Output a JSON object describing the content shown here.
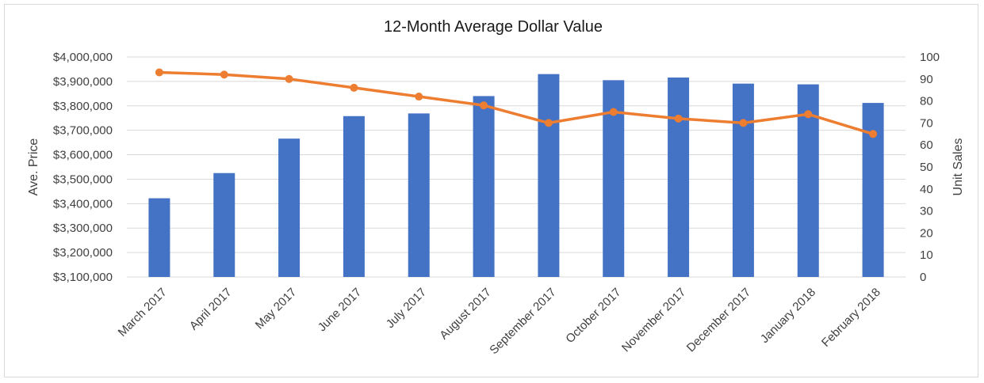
{
  "chart_data": {
    "type": "bar",
    "title": "12-Month Average Dollar Value",
    "xlabel": "",
    "ylabel": "Ave. Price",
    "y2label": "Unit Sales",
    "categories": [
      "March 2017",
      "April 2017",
      "May 2017",
      "June 2017",
      "July 2017",
      "August 2017",
      "September 2017",
      "October 2017",
      "November 2017",
      "December 2017",
      "January 2018",
      "February 2018"
    ],
    "ylim": [
      3100000,
      4000000
    ],
    "y2lim": [
      0,
      100
    ],
    "yticks": [
      "$3,100,000",
      "$3,200,000",
      "$3,300,000",
      "$3,400,000",
      "$3,500,000",
      "$3,600,000",
      "$3,700,000",
      "$3,800,000",
      "$3,900,000",
      "$4,000,000"
    ],
    "y2ticks": [
      "0",
      "10",
      "20",
      "30",
      "40",
      "50",
      "60",
      "70",
      "80",
      "90",
      "100"
    ],
    "grid": true,
    "series": [
      {
        "type": "bar",
        "axis": "left",
        "color": "#4472c4",
        "values": [
          3422000,
          3525000,
          3666000,
          3758000,
          3769000,
          3840000,
          3930000,
          3905000,
          3916000,
          3891000,
          3888000,
          3812000
        ]
      },
      {
        "type": "line",
        "axis": "right",
        "color": "#ed7d31",
        "values": [
          93,
          92,
          90,
          86,
          82,
          78,
          70,
          75,
          72,
          70,
          74,
          65
        ]
      }
    ]
  }
}
